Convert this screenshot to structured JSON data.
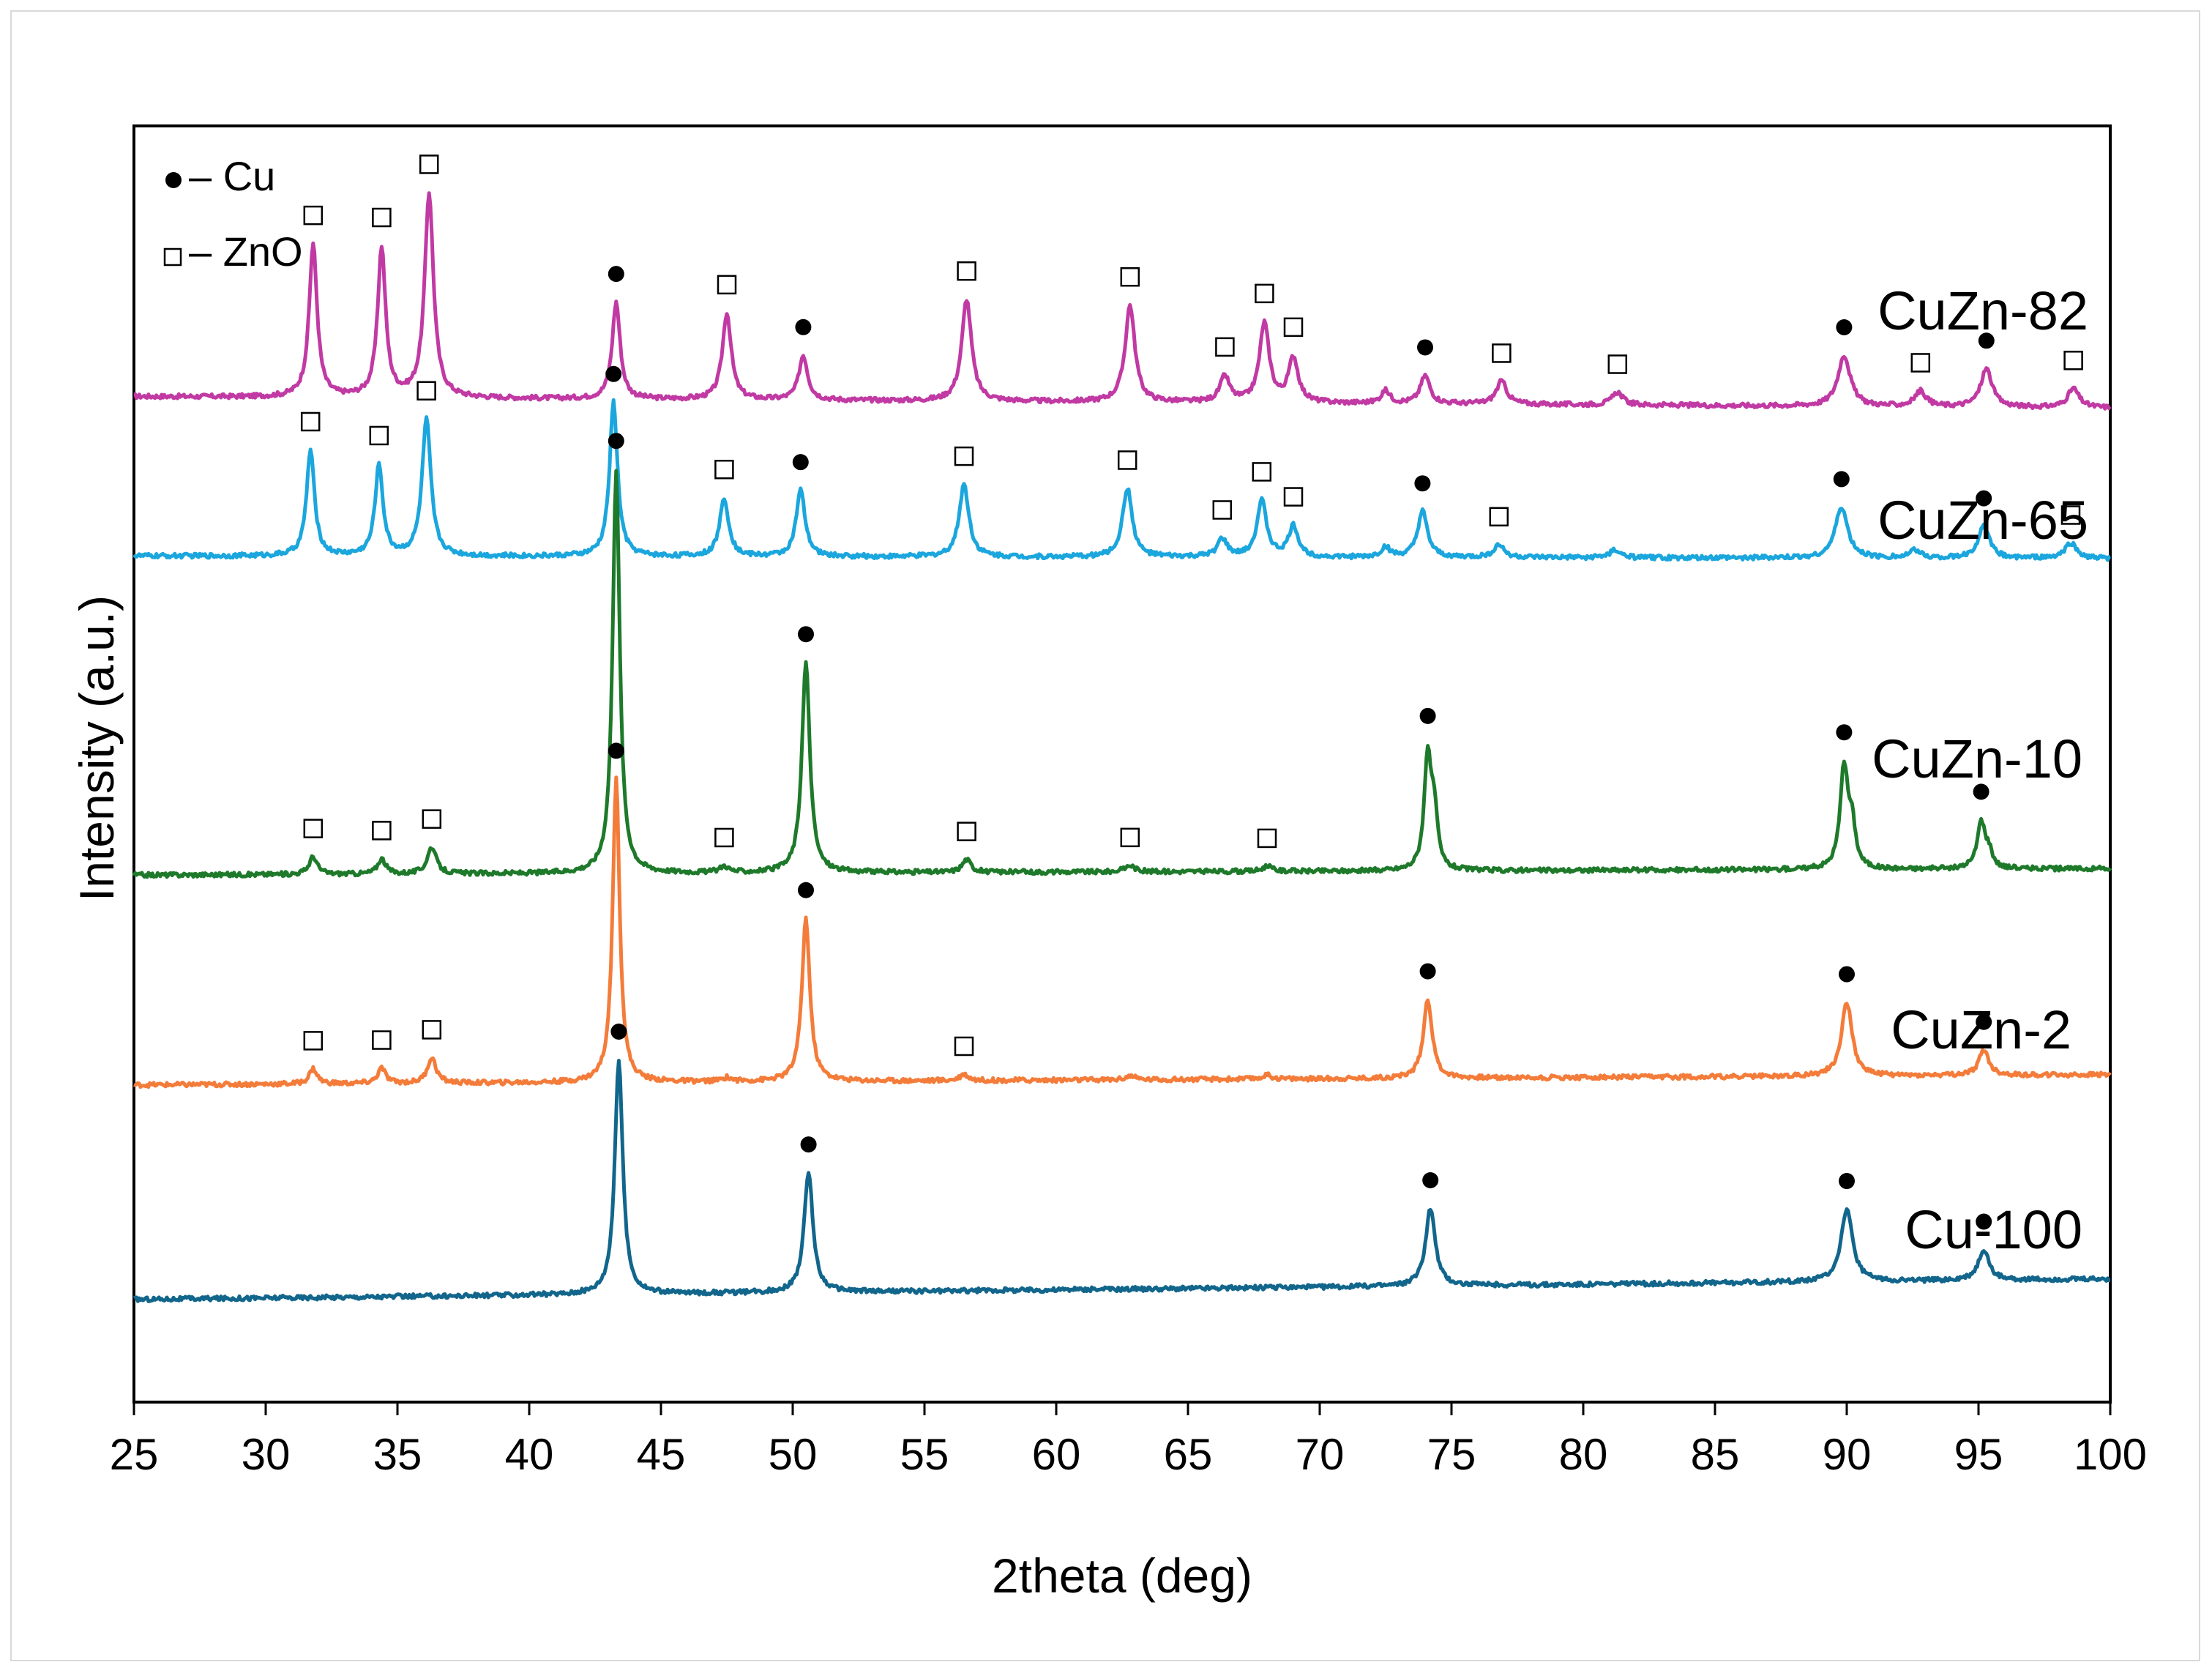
{
  "chart_data": {
    "type": "line",
    "title": "",
    "xlabel": "2theta (deg)",
    "ylabel": "Intensity (a.u.)",
    "xlim": [
      25,
      100
    ],
    "xticks": [
      25,
      30,
      35,
      40,
      45,
      50,
      55,
      60,
      65,
      70,
      75,
      80,
      85,
      90,
      95,
      100
    ],
    "ylim": [
      0,
      1
    ],
    "legend": [
      {
        "marker": "filled-circle",
        "label": "– Cu"
      },
      {
        "marker": "open-square",
        "label": "– ZnO"
      }
    ],
    "series": [
      {
        "name": "CuZn-82",
        "color": "#c13aa4",
        "offset": 0.788,
        "baseline_end": 0.779,
        "peaks": [
          {
            "x": 31.8,
            "h": 0.12,
            "w": 0.18,
            "m": "s"
          },
          {
            "x": 34.4,
            "h": 0.117,
            "w": 0.18,
            "m": "s"
          },
          {
            "x": 36.2,
            "h": 0.16,
            "w": 0.2,
            "m": "s"
          },
          {
            "x": 43.3,
            "h": 0.076,
            "w": 0.18,
            "m": "c"
          },
          {
            "x": 47.5,
            "h": 0.068,
            "w": 0.2,
            "m": "s"
          },
          {
            "x": 50.4,
            "h": 0.035,
            "w": 0.2,
            "m": "c"
          },
          {
            "x": 56.6,
            "h": 0.08,
            "w": 0.22,
            "m": "s"
          },
          {
            "x": 62.8,
            "h": 0.076,
            "w": 0.22,
            "m": "s"
          },
          {
            "x": 66.4,
            "h": 0.02,
            "w": 0.22,
            "m": "s"
          },
          {
            "x": 67.9,
            "h": 0.062,
            "w": 0.22,
            "m": "s"
          },
          {
            "x": 69.0,
            "h": 0.035,
            "w": 0.22,
            "m": "s"
          },
          {
            "x": 72.5,
            "h": 0.01,
            "w": 0.2,
            "m": ""
          },
          {
            "x": 74.0,
            "h": 0.022,
            "w": 0.22,
            "m": "c"
          },
          {
            "x": 76.9,
            "h": 0.018,
            "w": 0.24,
            "m": "s"
          },
          {
            "x": 81.3,
            "h": 0.01,
            "w": 0.24,
            "m": "s"
          },
          {
            "x": 89.9,
            "h": 0.04,
            "w": 0.28,
            "m": "c"
          },
          {
            "x": 92.8,
            "h": 0.012,
            "w": 0.26,
            "m": "s"
          },
          {
            "x": 95.3,
            "h": 0.03,
            "w": 0.26,
            "m": "c"
          },
          {
            "x": 98.6,
            "h": 0.015,
            "w": 0.26,
            "m": "s"
          }
        ]
      },
      {
        "name": "CuZn-65",
        "color": "#1ba6dd",
        "offset": 0.663,
        "baseline_end": 0.661,
        "peaks": [
          {
            "x": 31.7,
            "h": 0.083,
            "w": 0.18,
            "m": "s"
          },
          {
            "x": 34.3,
            "h": 0.071,
            "w": 0.18,
            "m": "s"
          },
          {
            "x": 36.1,
            "h": 0.107,
            "w": 0.2,
            "m": "s"
          },
          {
            "x": 43.2,
            "h": 0.121,
            "w": 0.18,
            "m": "c"
          },
          {
            "x": 47.4,
            "h": 0.046,
            "w": 0.2,
            "m": "s"
          },
          {
            "x": 50.3,
            "h": 0.052,
            "w": 0.2,
            "m": "c"
          },
          {
            "x": 56.5,
            "h": 0.057,
            "w": 0.22,
            "m": "s"
          },
          {
            "x": 62.7,
            "h": 0.054,
            "w": 0.22,
            "m": "s"
          },
          {
            "x": 66.3,
            "h": 0.014,
            "w": 0.22,
            "m": "s"
          },
          {
            "x": 67.8,
            "h": 0.044,
            "w": 0.22,
            "m": "s"
          },
          {
            "x": 69.0,
            "h": 0.024,
            "w": 0.22,
            "m": "s"
          },
          {
            "x": 72.5,
            "h": 0.008,
            "w": 0.2,
            "m": ""
          },
          {
            "x": 73.9,
            "h": 0.036,
            "w": 0.22,
            "m": "c"
          },
          {
            "x": 76.8,
            "h": 0.01,
            "w": 0.24,
            "m": "s"
          },
          {
            "x": 81.2,
            "h": 0.006,
            "w": 0.24,
            "m": ""
          },
          {
            "x": 89.8,
            "h": 0.04,
            "w": 0.28,
            "m": "c"
          },
          {
            "x": 92.6,
            "h": 0.006,
            "w": 0.26,
            "m": ""
          },
          {
            "x": 95.2,
            "h": 0.025,
            "w": 0.26,
            "m": "c"
          },
          {
            "x": 98.5,
            "h": 0.012,
            "w": 0.26,
            "m": "s"
          }
        ]
      },
      {
        "name": "CuZn-10",
        "color": "#1e7a2a",
        "offset": 0.413,
        "baseline_end": 0.418,
        "peaks": [
          {
            "x": 31.8,
            "h": 0.014,
            "w": 0.18,
            "m": "s"
          },
          {
            "x": 34.4,
            "h": 0.012,
            "w": 0.18,
            "m": "s"
          },
          {
            "x": 36.3,
            "h": 0.021,
            "w": 0.2,
            "m": "s"
          },
          {
            "x": 43.3,
            "h": 0.317,
            "w": 0.16,
            "m": "c"
          },
          {
            "x": 47.4,
            "h": 0.005,
            "w": 0.2,
            "m": "s"
          },
          {
            "x": 50.5,
            "h": 0.165,
            "w": 0.18,
            "m": "c"
          },
          {
            "x": 56.6,
            "h": 0.01,
            "w": 0.2,
            "m": "s"
          },
          {
            "x": 62.8,
            "h": 0.005,
            "w": 0.22,
            "m": "s"
          },
          {
            "x": 68.0,
            "h": 0.004,
            "w": 0.22,
            "m": "s"
          },
          {
            "x": 74.1,
            "h": 0.09,
            "w": 0.16,
            "m": "c"
          },
          {
            "x": 74.35,
            "h": 0.04,
            "w": 0.14,
            "m": ""
          },
          {
            "x": 89.9,
            "h": 0.079,
            "w": 0.18,
            "m": "c"
          },
          {
            "x": 90.2,
            "h": 0.03,
            "w": 0.16,
            "m": ""
          },
          {
            "x": 95.1,
            "h": 0.036,
            "w": 0.18,
            "m": "c"
          },
          {
            "x": 95.4,
            "h": 0.012,
            "w": 0.16,
            "m": ""
          }
        ]
      },
      {
        "name": "CuZn-2",
        "color": "#f47c3a",
        "offset": 0.2485,
        "baseline_end": 0.2565,
        "peaks": [
          {
            "x": 31.8,
            "h": 0.012,
            "w": 0.18,
            "m": "s"
          },
          {
            "x": 34.4,
            "h": 0.012,
            "w": 0.18,
            "m": "s"
          },
          {
            "x": 36.3,
            "h": 0.02,
            "w": 0.2,
            "m": "s"
          },
          {
            "x": 43.3,
            "h": 0.238,
            "w": 0.16,
            "m": "c"
          },
          {
            "x": 47.5,
            "h": 0.003,
            "w": 0.2,
            "m": ""
          },
          {
            "x": 50.5,
            "h": 0.128,
            "w": 0.18,
            "m": "c"
          },
          {
            "x": 56.5,
            "h": 0.005,
            "w": 0.2,
            "m": "s"
          },
          {
            "x": 62.8,
            "h": 0.003,
            "w": 0.22,
            "m": ""
          },
          {
            "x": 68.0,
            "h": 0.003,
            "w": 0.22,
            "m": ""
          },
          {
            "x": 74.1,
            "h": 0.062,
            "w": 0.2,
            "m": "c"
          },
          {
            "x": 90.0,
            "h": 0.058,
            "w": 0.24,
            "m": "c"
          },
          {
            "x": 95.2,
            "h": 0.02,
            "w": 0.22,
            "m": "c"
          }
        ]
      },
      {
        "name": "Cu-100",
        "color": "#12668c",
        "offset": 0.0805,
        "baseline_end": 0.0965,
        "peaks": [
          {
            "x": 43.4,
            "h": 0.184,
            "w": 0.18,
            "m": "c"
          },
          {
            "x": 50.6,
            "h": 0.094,
            "w": 0.2,
            "m": "c"
          },
          {
            "x": 74.2,
            "h": 0.061,
            "w": 0.22,
            "m": "c"
          },
          {
            "x": 90.0,
            "h": 0.057,
            "w": 0.26,
            "m": "c"
          },
          {
            "x": 95.2,
            "h": 0.024,
            "w": 0.24,
            "m": "c"
          }
        ]
      }
    ]
  }
}
